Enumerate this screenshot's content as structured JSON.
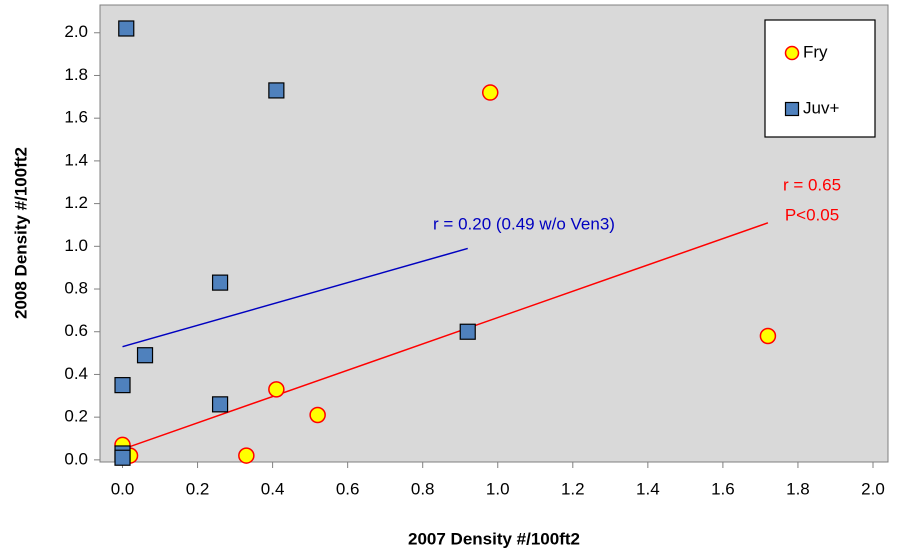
{
  "chart_data": {
    "type": "scatter",
    "x_label": "2007 Density #/100ft2",
    "y_label": "2008 Density #/100ft2",
    "xlim": [
      -0.06,
      2.04
    ],
    "ylim": [
      -0.01,
      2.13
    ],
    "xticks": [
      {
        "value": 0,
        "label": "0.0"
      },
      {
        "value": 0.2,
        "label": "0.2"
      },
      {
        "value": 0.4,
        "label": "0.4"
      },
      {
        "value": 0.6,
        "label": "0.6"
      },
      {
        "value": 0.8,
        "label": "0.8"
      },
      {
        "value": 1,
        "label": "1.0"
      },
      {
        "value": 1.2,
        "label": "1.2"
      },
      {
        "value": 1.4,
        "label": "1.4"
      },
      {
        "value": 1.6,
        "label": "1.6"
      },
      {
        "value": 1.8,
        "label": "1.8"
      },
      {
        "value": 2,
        "label": "2.0"
      }
    ],
    "yticks": [
      {
        "value": 0,
        "label": "0.0"
      },
      {
        "value": 0.2,
        "label": "0.2"
      },
      {
        "value": 0.4,
        "label": "0.4"
      },
      {
        "value": 0.6,
        "label": "0.6"
      },
      {
        "value": 0.8,
        "label": "0.8"
      },
      {
        "value": 1,
        "label": "1.0"
      },
      {
        "value": 1.2,
        "label": "1.2"
      },
      {
        "value": 1.4,
        "label": "1.4"
      },
      {
        "value": 1.6,
        "label": "1.6"
      },
      {
        "value": 1.8,
        "label": "1.8"
      },
      {
        "value": 2,
        "label": "2.0"
      }
    ],
    "background": "#d9d9d9",
    "legend": "upper right",
    "series": [
      {
        "name": "Fry",
        "marker": "circle",
        "color": "#ffff00",
        "edgecolor": "#ff0000",
        "x": [
          0.0,
          0.02,
          0.33,
          0.41,
          0.52,
          0.98,
          1.72
        ],
        "values": [
          0.07,
          0.02,
          0.02,
          0.33,
          0.21,
          1.72,
          0.58
        ]
      },
      {
        "name": "Juv+",
        "marker": "square",
        "color": "#4f81bd",
        "edgecolor": "#000000",
        "x": [
          0.01,
          0.41,
          0.26,
          0.06,
          0.0,
          0.26,
          0.92,
          0.0,
          0.0
        ],
        "values": [
          2.02,
          1.73,
          0.83,
          0.49,
          0.35,
          0.26,
          0.6,
          0.03,
          0.01
        ]
      }
    ],
    "trendlines": [
      {
        "color": "#0000c0",
        "x": [
          0,
          0.92
        ],
        "values": [
          0.53,
          0.99
        ]
      },
      {
        "color": "#ff0000",
        "x": [
          0,
          1.72
        ],
        "values": [
          0.05,
          1.11
        ]
      }
    ],
    "annotations": [
      {
        "text": "r = 0.20 (0.49 w/o Ven3)",
        "color": "#0000c0"
      },
      {
        "text": "r = 0.65",
        "color": "#ff0000"
      },
      {
        "text": "P<0.05",
        "color": "#ff0000"
      }
    ]
  }
}
